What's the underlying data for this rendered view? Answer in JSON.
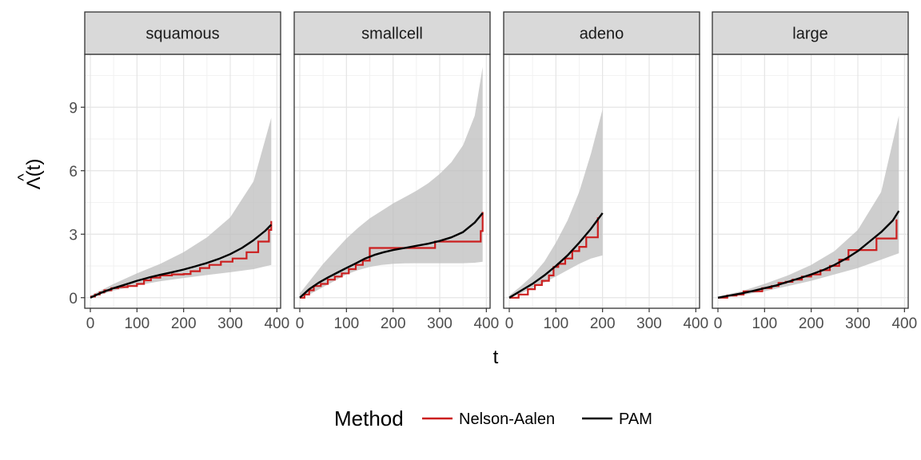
{
  "chart_data": {
    "type": "line",
    "xlabel": "t",
    "ylabel": "Λ(t)",
    "ylabel_accent": "^",
    "xlim": [
      -12,
      408
    ],
    "ylim": [
      -0.5,
      11.5
    ],
    "x_ticks": [
      "0",
      "100",
      "200",
      "300",
      "400"
    ],
    "x_tick_values": [
      0,
      100,
      200,
      300,
      400
    ],
    "y_ticks": [
      "0",
      "3",
      "6",
      "9"
    ],
    "y_tick_values": [
      0,
      3,
      6,
      9
    ],
    "grid": true,
    "legend": {
      "title": "Method",
      "placement": "bottom",
      "entries": [
        {
          "label": "Nelson-Aalen",
          "color": "#cc1f1f"
        },
        {
          "label": "PAM",
          "color": "#000000"
        }
      ]
    },
    "colors": {
      "nelson_aalen": "#cc1f1f",
      "pam": "#000000",
      "ribbon": "#bdbdbd",
      "strip": "#d9d9d9"
    },
    "panels": [
      {
        "label": "squamous",
        "pam": {
          "x": [
            0,
            25,
            50,
            75,
            100,
            125,
            150,
            175,
            200,
            225,
            250,
            275,
            300,
            325,
            350,
            375,
            388
          ],
          "y": [
            0.0,
            0.25,
            0.45,
            0.62,
            0.8,
            0.95,
            1.08,
            1.2,
            1.33,
            1.48,
            1.64,
            1.83,
            2.06,
            2.35,
            2.72,
            3.16,
            3.45
          ]
        },
        "ribbon": {
          "x": [
            0,
            50,
            100,
            150,
            200,
            250,
            300,
            350,
            388
          ],
          "lower": [
            0.0,
            0.33,
            0.58,
            0.78,
            0.93,
            1.07,
            1.2,
            1.35,
            1.55
          ],
          "upper": [
            0.1,
            0.65,
            1.15,
            1.6,
            2.15,
            2.85,
            3.8,
            5.5,
            8.5
          ]
        },
        "nelson_aalen": {
          "x": [
            0,
            10,
            20,
            30,
            45,
            60,
            80,
            100,
            115,
            130,
            150,
            175,
            200,
            215,
            235,
            255,
            280,
            305,
            335,
            360,
            383,
            388
          ],
          "y": [
            0.05,
            0.15,
            0.25,
            0.35,
            0.45,
            0.5,
            0.55,
            0.65,
            0.82,
            0.95,
            1.05,
            1.1,
            1.12,
            1.25,
            1.4,
            1.55,
            1.7,
            1.85,
            2.15,
            2.65,
            3.2,
            3.62
          ]
        }
      },
      {
        "label": "smallcell",
        "pam": {
          "x": [
            0,
            20,
            40,
            60,
            80,
            100,
            120,
            140,
            160,
            180,
            200,
            225,
            250,
            275,
            300,
            325,
            350,
            375,
            392
          ],
          "y": [
            0.0,
            0.4,
            0.7,
            0.95,
            1.18,
            1.4,
            1.62,
            1.85,
            2.02,
            2.15,
            2.25,
            2.35,
            2.45,
            2.55,
            2.68,
            2.85,
            3.1,
            3.55,
            4.0
          ]
        },
        "ribbon": {
          "x": [
            0,
            25,
            50,
            75,
            100,
            125,
            150,
            175,
            200,
            225,
            250,
            275,
            300,
            325,
            350,
            375,
            392
          ],
          "lower": [
            0.0,
            0.2,
            0.5,
            0.8,
            1.1,
            1.3,
            1.45,
            1.55,
            1.6,
            1.62,
            1.63,
            1.63,
            1.63,
            1.63,
            1.63,
            1.65,
            1.7
          ],
          "upper": [
            0.2,
            0.9,
            1.6,
            2.2,
            2.8,
            3.3,
            3.75,
            4.1,
            4.45,
            4.75,
            5.05,
            5.4,
            5.85,
            6.4,
            7.2,
            8.6,
            10.9
          ]
        },
        "nelson_aalen": {
          "x": [
            0,
            10,
            20,
            30,
            45,
            60,
            75,
            90,
            105,
            120,
            135,
            150,
            175,
            200,
            250,
            290,
            330,
            365,
            388,
            392
          ],
          "y": [
            0.0,
            0.15,
            0.35,
            0.55,
            0.65,
            0.85,
            1.0,
            1.15,
            1.35,
            1.55,
            1.75,
            2.35,
            2.35,
            2.35,
            2.35,
            2.65,
            2.65,
            2.65,
            3.15,
            4.05
          ]
        }
      },
      {
        "label": "adeno",
        "pam": {
          "x": [
            0,
            25,
            50,
            75,
            100,
            125,
            150,
            175,
            200
          ],
          "y": [
            0.0,
            0.33,
            0.66,
            1.05,
            1.5,
            2.0,
            2.6,
            3.25,
            4.0
          ]
        },
        "ribbon": {
          "x": [
            0,
            25,
            50,
            75,
            100,
            125,
            150,
            175,
            200
          ],
          "lower": [
            0.0,
            0.2,
            0.45,
            0.72,
            1.0,
            1.3,
            1.6,
            1.85,
            2.0
          ],
          "upper": [
            0.1,
            0.55,
            1.05,
            1.7,
            2.6,
            3.65,
            5.0,
            6.8,
            8.9
          ]
        },
        "nelson_aalen": {
          "x": [
            0,
            20,
            40,
            55,
            70,
            85,
            95,
            105,
            120,
            135,
            150,
            165,
            190
          ],
          "y": [
            0.0,
            0.15,
            0.4,
            0.6,
            0.8,
            1.05,
            1.45,
            1.6,
            1.85,
            2.2,
            2.4,
            2.85,
            3.8
          ]
        }
      },
      {
        "label": "large",
        "pam": {
          "x": [
            0,
            25,
            50,
            75,
            100,
            125,
            150,
            175,
            200,
            225,
            250,
            275,
            300,
            325,
            350,
            375,
            388
          ],
          "y": [
            0.0,
            0.1,
            0.2,
            0.32,
            0.45,
            0.58,
            0.75,
            0.92,
            1.1,
            1.3,
            1.55,
            1.85,
            2.2,
            2.65,
            3.1,
            3.65,
            4.1
          ]
        },
        "ribbon": {
          "x": [
            0,
            50,
            100,
            150,
            200,
            250,
            300,
            350,
            388
          ],
          "lower": [
            0.0,
            0.12,
            0.3,
            0.55,
            0.8,
            1.1,
            1.4,
            1.8,
            2.1
          ],
          "upper": [
            0.05,
            0.3,
            0.65,
            1.05,
            1.55,
            2.2,
            3.2,
            5.0,
            8.6
          ]
        },
        "nelson_aalen": {
          "x": [
            0,
            20,
            40,
            55,
            75,
            95,
            115,
            130,
            145,
            160,
            180,
            200,
            220,
            240,
            260,
            280,
            340,
            375,
            383
          ],
          "y": [
            0.0,
            0.1,
            0.15,
            0.3,
            0.3,
            0.45,
            0.55,
            0.7,
            0.75,
            0.85,
            1.0,
            1.1,
            1.3,
            1.5,
            1.8,
            2.25,
            2.8,
            2.8,
            3.7
          ]
        }
      }
    ]
  }
}
